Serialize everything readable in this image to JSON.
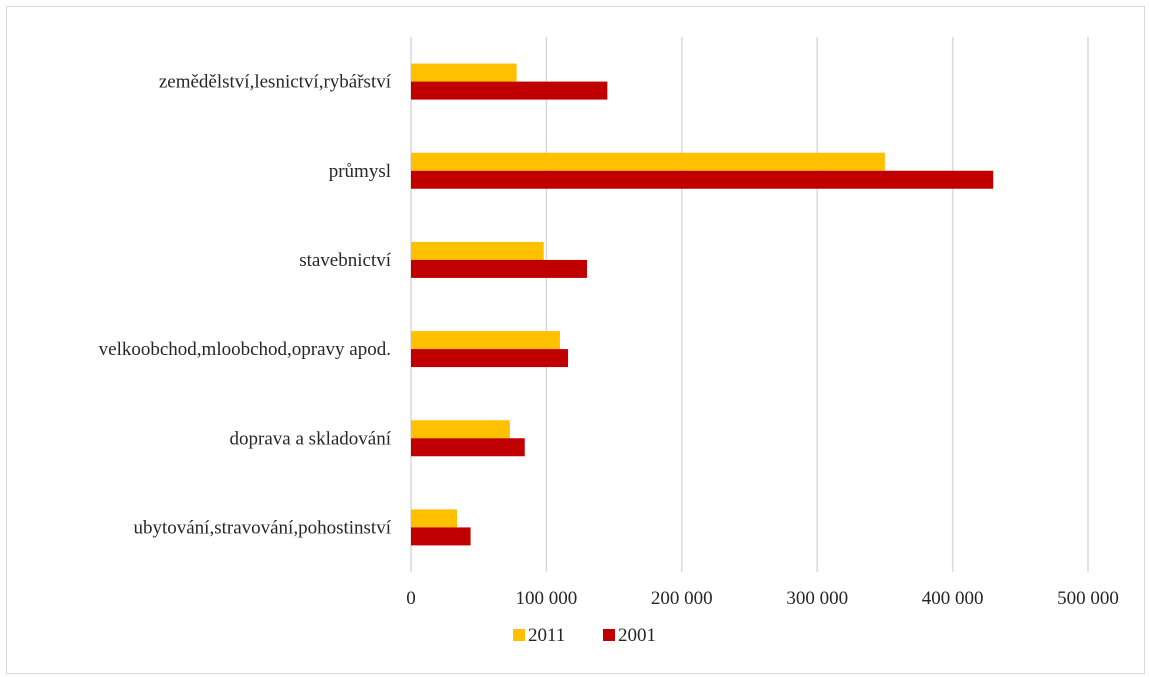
{
  "chart_data": {
    "type": "bar",
    "orientation": "horizontal",
    "categories": [
      "zemědělství,lesnictví,rybářství",
      "průmysl",
      "stavebnictví",
      "velkoobchod,mloobchod,opravy apod.",
      "doprava a skladování",
      "ubytování,stravování,pohostinství"
    ],
    "series": [
      {
        "name": "2011",
        "color": "#FFC000",
        "values": [
          78000,
          350000,
          98000,
          110000,
          73000,
          34000
        ]
      },
      {
        "name": "2001",
        "color": "#C00000",
        "values": [
          145000,
          430000,
          130000,
          116000,
          84000,
          44000
        ]
      }
    ],
    "xlim": [
      0,
      500000
    ],
    "x_ticks": [
      0,
      100000,
      200000,
      300000,
      400000,
      500000
    ],
    "x_tick_labels": [
      "0",
      "100 000",
      "200 000",
      "300 000",
      "400 000",
      "500 000"
    ],
    "grid": "vertical",
    "legend_position": "bottom",
    "title": "",
    "xlabel": "",
    "ylabel": ""
  }
}
